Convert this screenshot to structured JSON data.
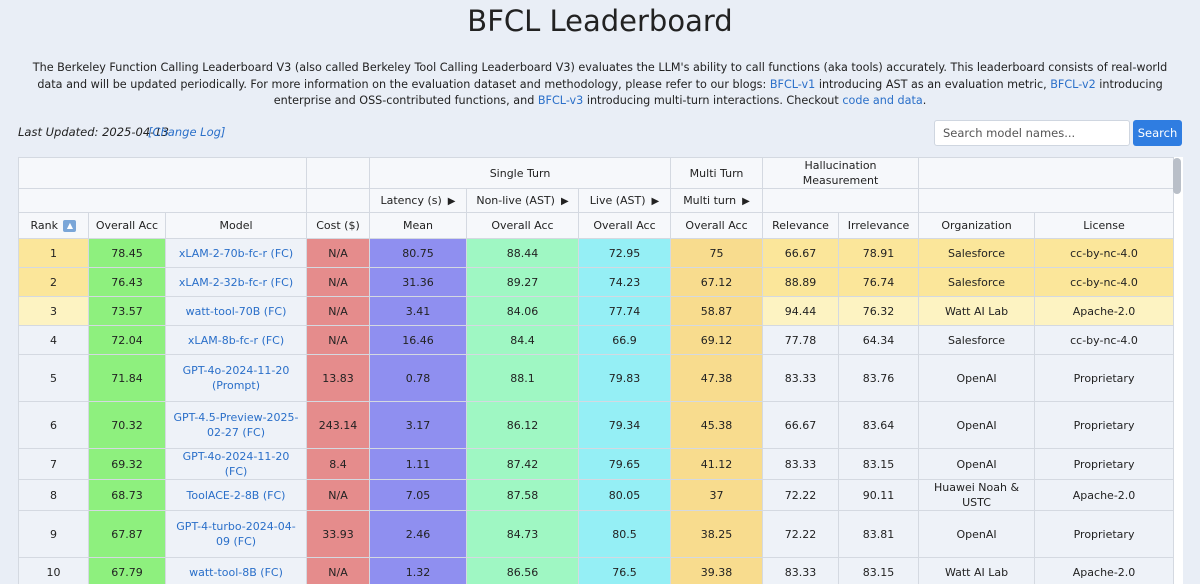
{
  "title": "BFCL Leaderboard",
  "intro": {
    "p1": "The Berkeley Function Calling Leaderboard V3 (also called Berkeley Tool Calling Leaderboard V3) evaluates the LLM's ability to call functions (aka tools) accurately. This leaderboard consists of real-world data and will be updated periodically. For more information on the evaluation dataset and methodology, please refer to our blogs: ",
    "link1": "BFCL-v1",
    "p2": " introducing AST as an evaluation metric, ",
    "link2": "BFCL-v2",
    "p3": " introducing enterprise and OSS-contributed functions, and ",
    "link3": "BFCL-v3",
    "p4": " introducing multi-turn interactions. Checkout ",
    "link4": "code and data",
    "p5": "."
  },
  "last_updated": "Last Updated: 2025-04-13",
  "change_log": "[Change Log]",
  "search": {
    "placeholder": "Search model names...",
    "button": "Search"
  },
  "headers": {
    "single_turn": "Single Turn",
    "multi_turn": "Multi Turn",
    "hallucination": "Hallucination Measurement",
    "latency": "Latency (s)",
    "non_live": "Non-live (AST)",
    "live": "Live (AST)",
    "multi_turn_sub": "Multi turn",
    "triangle": "▶",
    "sort_icon": "▲",
    "rank": "Rank",
    "overall_acc": "Overall Acc",
    "model": "Model",
    "cost": "Cost ($)",
    "mean": "Mean",
    "relevance": "Relevance",
    "irrelevance": "Irrelevance",
    "organization": "Organization",
    "license": "License"
  },
  "colors": {
    "salesforce": "#fbe69a",
    "watt": "#fdf3c2",
    "default": "#eef2f8"
  },
  "rows": [
    {
      "rank": "1",
      "acc": "78.45",
      "model": "xLAM-2-70b-fc-r (FC)",
      "cost": "N/A",
      "mean": "80.75",
      "nonlive": "88.44",
      "live": "72.95",
      "multi": "75",
      "rel": "66.67",
      "irrel": "78.91",
      "org": "Salesforce",
      "license": "cc-by-nc-4.0",
      "group": "salesforce",
      "tall": false
    },
    {
      "rank": "2",
      "acc": "76.43",
      "model": "xLAM-2-32b-fc-r (FC)",
      "cost": "N/A",
      "mean": "31.36",
      "nonlive": "89.27",
      "live": "74.23",
      "multi": "67.12",
      "rel": "88.89",
      "irrel": "76.74",
      "org": "Salesforce",
      "license": "cc-by-nc-4.0",
      "group": "salesforce",
      "tall": false
    },
    {
      "rank": "3",
      "acc": "73.57",
      "model": "watt-tool-70B (FC)",
      "cost": "N/A",
      "mean": "3.41",
      "nonlive": "84.06",
      "live": "77.74",
      "multi": "58.87",
      "rel": "94.44",
      "irrel": "76.32",
      "org": "Watt AI Lab",
      "license": "Apache-2.0",
      "group": "watt",
      "tall": false
    },
    {
      "rank": "4",
      "acc": "72.04",
      "model": "xLAM-8b-fc-r (FC)",
      "cost": "N/A",
      "mean": "16.46",
      "nonlive": "84.4",
      "live": "66.9",
      "multi": "69.12",
      "rel": "77.78",
      "irrel": "64.34",
      "org": "Salesforce",
      "license": "cc-by-nc-4.0",
      "group": "default",
      "tall": false
    },
    {
      "rank": "5",
      "acc": "71.84",
      "model": "GPT-4o-2024-11-20 (Prompt)",
      "cost": "13.83",
      "mean": "0.78",
      "nonlive": "88.1",
      "live": "79.83",
      "multi": "47.38",
      "rel": "83.33",
      "irrel": "83.76",
      "org": "OpenAI",
      "license": "Proprietary",
      "group": "default",
      "tall": true
    },
    {
      "rank": "6",
      "acc": "70.32",
      "model": "GPT-4.5-Preview-2025-02-27 (FC)",
      "cost": "243.14",
      "mean": "3.17",
      "nonlive": "86.12",
      "live": "79.34",
      "multi": "45.38",
      "rel": "66.67",
      "irrel": "83.64",
      "org": "OpenAI",
      "license": "Proprietary",
      "group": "default",
      "tall": true
    },
    {
      "rank": "7",
      "acc": "69.32",
      "model": "GPT-4o-2024-11-20 (FC)",
      "cost": "8.4",
      "mean": "1.11",
      "nonlive": "87.42",
      "live": "79.65",
      "multi": "41.12",
      "rel": "83.33",
      "irrel": "83.15",
      "org": "OpenAI",
      "license": "Proprietary",
      "group": "default",
      "tall": false
    },
    {
      "rank": "8",
      "acc": "68.73",
      "model": "ToolACE-2-8B (FC)",
      "cost": "N/A",
      "mean": "7.05",
      "nonlive": "87.58",
      "live": "80.05",
      "multi": "37",
      "rel": "72.22",
      "irrel": "90.11",
      "org": "Huawei Noah & USTC",
      "license": "Apache-2.0",
      "group": "default",
      "tall": false
    },
    {
      "rank": "9",
      "acc": "67.87",
      "model": "GPT-4-turbo-2024-04-09 (FC)",
      "cost": "33.93",
      "mean": "2.46",
      "nonlive": "84.73",
      "live": "80.5",
      "multi": "38.25",
      "rel": "72.22",
      "irrel": "83.81",
      "org": "OpenAI",
      "license": "Proprietary",
      "group": "default",
      "tall": true
    },
    {
      "rank": "10",
      "acc": "67.79",
      "model": "watt-tool-8B (FC)",
      "cost": "N/A",
      "mean": "1.32",
      "nonlive": "86.56",
      "live": "76.5",
      "multi": "39.38",
      "rel": "83.33",
      "irrel": "83.15",
      "org": "Watt AI Lab",
      "license": "Apache-2.0",
      "group": "default",
      "tall": false
    }
  ]
}
